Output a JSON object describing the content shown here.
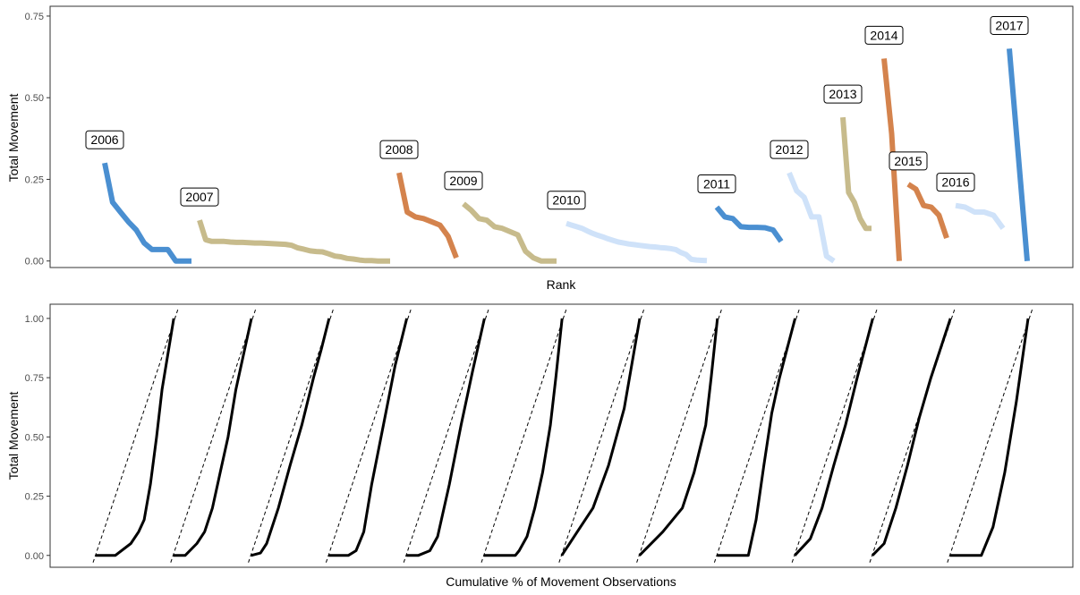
{
  "colors": {
    "blue": "#4a8fd1",
    "tan": "#c7bb8c",
    "orange": "#d4834d",
    "lightblue": "#cfe2f9"
  },
  "chart_data": [
    {
      "type": "line",
      "xlabel": "Rank",
      "ylabel": "Total Movement",
      "ylim": [
        -0.02,
        0.78
      ],
      "yticks": [
        "0.00",
        "0.25",
        "0.50",
        "0.75"
      ],
      "grid": false,
      "series": [
        {
          "name": "2006",
          "color": "blue",
          "values": [
            0.3,
            0.18,
            0.15,
            0.12,
            0.095,
            0.055,
            0.035,
            0.035,
            0.035,
            0.0,
            0.0,
            0.0
          ]
        },
        {
          "name": "2007",
          "color": "tan",
          "values": [
            0.125,
            0.065,
            0.06,
            0.06,
            0.06,
            0.058,
            0.057,
            0.057,
            0.056,
            0.055,
            0.055,
            0.054,
            0.053,
            0.052,
            0.051,
            0.048,
            0.04,
            0.036,
            0.031,
            0.029,
            0.028,
            0.022,
            0.015,
            0.013,
            0.008,
            0.006,
            0.003,
            0.001,
            0.001,
            0.0,
            0.0,
            0.0
          ]
        },
        {
          "name": "2008",
          "color": "orange",
          "values": [
            0.27,
            0.15,
            0.135,
            0.13,
            0.12,
            0.11,
            0.075,
            0.01
          ]
        },
        {
          "name": "2009",
          "color": "tan",
          "values": [
            0.175,
            0.155,
            0.13,
            0.125,
            0.105,
            0.1,
            0.09,
            0.08,
            0.03,
            0.01,
            0.0,
            0.0,
            0.0
          ]
        },
        {
          "name": "2010",
          "color": "lightblue",
          "values": [
            0.115,
            0.11,
            0.105,
            0.1,
            0.092,
            0.085,
            0.079,
            0.074,
            0.068,
            0.063,
            0.058,
            0.055,
            0.052,
            0.05,
            0.048,
            0.046,
            0.044,
            0.043,
            0.041,
            0.04,
            0.038,
            0.035,
            0.026,
            0.02,
            0.005,
            0.003,
            0.002,
            0.001
          ]
        },
        {
          "name": "2011",
          "color": "blue",
          "values": [
            0.165,
            0.135,
            0.13,
            0.105,
            0.103,
            0.103,
            0.102,
            0.095,
            0.06
          ]
        },
        {
          "name": "2012",
          "color": "lightblue",
          "values": [
            0.27,
            0.215,
            0.195,
            0.135,
            0.135,
            0.015,
            0.0
          ]
        },
        {
          "name": "2013",
          "color": "tan",
          "values": [
            0.44,
            0.21,
            0.18,
            0.13,
            0.1,
            0.1
          ]
        },
        {
          "name": "2014",
          "color": "orange",
          "values": [
            0.62,
            0.39,
            0.0
          ]
        },
        {
          "name": "2015",
          "color": "orange",
          "values": [
            0.235,
            0.22,
            0.17,
            0.165,
            0.14,
            0.07
          ]
        },
        {
          "name": "2016",
          "color": "lightblue",
          "values": [
            0.17,
            0.165,
            0.15,
            0.15,
            0.14,
            0.1
          ]
        },
        {
          "name": "2017",
          "color": "blue",
          "values": [
            0.65,
            0.0
          ]
        }
      ]
    },
    {
      "type": "line",
      "xlabel": "Cumulative % of Movement Observations",
      "ylabel": "Total Movement",
      "ylim": [
        -0.05,
        1.06
      ],
      "yticks": [
        "0.00",
        "0.25",
        "0.50",
        "0.75",
        "1.00"
      ],
      "grid": false,
      "curve_color": "#000000",
      "reference_line": "dashed diagonal per panel",
      "panels": [
        {
          "x": [
            0,
            0.25,
            0.45,
            0.55,
            0.62,
            0.7,
            0.78,
            0.85,
            1.0
          ],
          "y": [
            0,
            0,
            0.05,
            0.1,
            0.15,
            0.3,
            0.5,
            0.7,
            1.0
          ]
        },
        {
          "x": [
            0,
            0.15,
            0.3,
            0.4,
            0.5,
            0.6,
            0.7,
            0.8,
            1.0
          ],
          "y": [
            0,
            0,
            0.05,
            0.1,
            0.2,
            0.35,
            0.5,
            0.7,
            1.0
          ]
        },
        {
          "x": [
            0,
            0.12,
            0.2,
            0.35,
            0.5,
            0.65,
            0.8,
            0.9,
            1.0
          ],
          "y": [
            0,
            0.01,
            0.05,
            0.2,
            0.38,
            0.55,
            0.75,
            0.87,
            1.0
          ]
        },
        {
          "x": [
            0,
            0.25,
            0.35,
            0.45,
            0.55,
            0.7,
            0.85,
            1.0
          ],
          "y": [
            0,
            0,
            0.02,
            0.1,
            0.3,
            0.55,
            0.8,
            1.0
          ]
        },
        {
          "x": [
            0,
            0.15,
            0.3,
            0.4,
            0.55,
            0.7,
            0.85,
            1.0
          ],
          "y": [
            0,
            0,
            0.02,
            0.08,
            0.3,
            0.55,
            0.78,
            1.0
          ]
        },
        {
          "x": [
            0,
            0.4,
            0.45,
            0.55,
            0.65,
            0.75,
            0.85,
            0.92,
            1.0
          ],
          "y": [
            0,
            0,
            0.02,
            0.08,
            0.2,
            0.35,
            0.55,
            0.75,
            1.0
          ]
        },
        {
          "x": [
            0,
            0.2,
            0.4,
            0.6,
            0.8,
            1.0
          ],
          "y": [
            0,
            0.1,
            0.2,
            0.38,
            0.62,
            1.0
          ]
        },
        {
          "x": [
            0,
            0.3,
            0.55,
            0.7,
            0.85,
            0.92,
            1.0
          ],
          "y": [
            0,
            0.1,
            0.2,
            0.35,
            0.55,
            0.75,
            1.0
          ]
        },
        {
          "x": [
            0,
            0.4,
            0.5,
            0.6,
            0.7,
            0.8,
            0.92,
            1.0
          ],
          "y": [
            0,
            0,
            0.15,
            0.38,
            0.6,
            0.75,
            0.9,
            1.0
          ]
        },
        {
          "x": [
            0,
            0.2,
            0.35,
            0.5,
            0.65,
            0.8,
            1.0
          ],
          "y": [
            0,
            0.07,
            0.2,
            0.38,
            0.55,
            0.75,
            1.0
          ]
        },
        {
          "x": [
            0,
            0.15,
            0.3,
            0.45,
            0.6,
            0.75,
            1.0
          ],
          "y": [
            0,
            0.05,
            0.2,
            0.38,
            0.58,
            0.75,
            1.0
          ]
        },
        {
          "x": [
            0,
            0.4,
            0.55,
            0.7,
            0.85,
            1.0
          ],
          "y": [
            0,
            0,
            0.12,
            0.35,
            0.65,
            1.0
          ]
        }
      ]
    }
  ]
}
